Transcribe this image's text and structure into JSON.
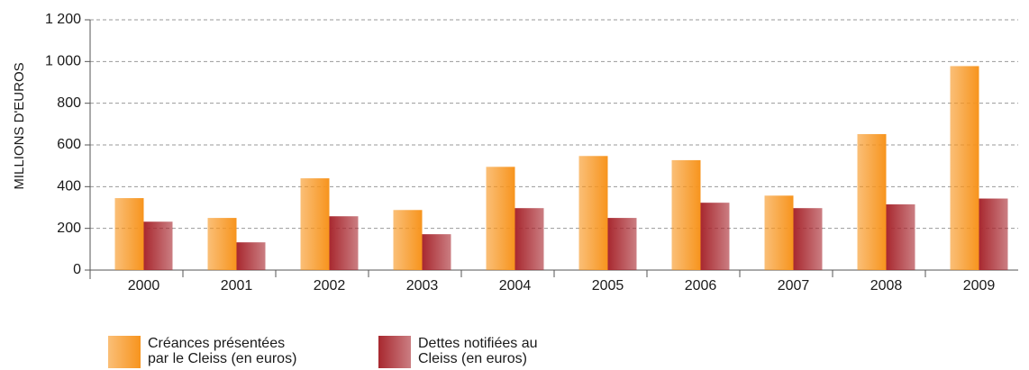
{
  "chart_data": {
    "type": "bar",
    "y_label": "MILLIONS D'EUROS",
    "categories": [
      "2000",
      "2001",
      "2002",
      "2003",
      "2004",
      "2005",
      "2006",
      "2007",
      "2008",
      "2009"
    ],
    "series": [
      {
        "name": "Créances présentées par le Cleiss (en euros)",
        "color": "#f7941d",
        "values": [
          345,
          250,
          440,
          288,
          495,
          547,
          527,
          357,
          652,
          978
        ]
      },
      {
        "name": "Dettes notifiées au Cleiss (en euros)",
        "color": "#a8282f",
        "values": [
          232,
          133,
          258,
          172,
          297,
          250,
          323,
          297,
          315,
          343
        ]
      }
    ],
    "ylim": [
      0,
      1200
    ],
    "yticks": [
      0,
      200,
      400,
      600,
      800,
      {
        "value": 1000,
        "label": "1 000"
      },
      {
        "value": 1200,
        "label": "1 200"
      }
    ],
    "grid": true
  }
}
